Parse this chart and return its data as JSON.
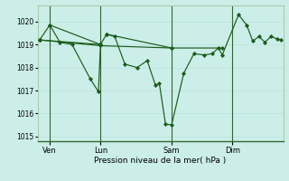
{
  "xlabel": "Pression niveau de la mer( hPa )",
  "bg_color": "#cceee8",
  "line_color": "#1a5c1a",
  "marker_color": "#1a5c1a",
  "ylim": [
    1014.8,
    1020.7
  ],
  "yticks": [
    1015,
    1016,
    1017,
    1018,
    1019,
    1020
  ],
  "day_labels": [
    "Ven",
    "Lun",
    "Sam",
    "Dim"
  ],
  "day_positions": [
    0.5,
    3.0,
    6.5,
    9.5
  ],
  "xlim": [
    -0.1,
    12.0
  ],
  "series": [
    [
      [
        0.0,
        1019.2
      ],
      [
        0.5,
        1019.85
      ],
      [
        1.0,
        1019.1
      ],
      [
        1.6,
        1019.0
      ],
      [
        2.5,
        1017.5
      ],
      [
        2.9,
        1016.95
      ],
      [
        3.0,
        1019.0
      ],
      [
        3.3,
        1019.45
      ],
      [
        3.7,
        1019.35
      ],
      [
        4.2,
        1018.15
      ],
      [
        4.8,
        1018.0
      ],
      [
        5.3,
        1018.3
      ],
      [
        5.7,
        1017.25
      ],
      [
        5.9,
        1017.3
      ],
      [
        6.2,
        1015.55
      ],
      [
        6.5,
        1015.5
      ],
      [
        7.1,
        1017.75
      ],
      [
        7.6,
        1018.6
      ],
      [
        8.1,
        1018.55
      ],
      [
        8.5,
        1018.6
      ],
      [
        8.8,
        1018.85
      ],
      [
        9.0,
        1018.55
      ],
      [
        9.8,
        1020.3
      ],
      [
        10.2,
        1019.85
      ],
      [
        10.5,
        1019.15
      ],
      [
        10.8,
        1019.35
      ],
      [
        11.1,
        1019.1
      ],
      [
        11.4,
        1019.35
      ],
      [
        11.7,
        1019.25
      ],
      [
        11.9,
        1019.2
      ]
    ]
  ],
  "extra_lines": [
    [
      [
        0.0,
        1019.2
      ],
      [
        3.0,
        1019.0
      ]
    ],
    [
      [
        0.0,
        1019.2
      ],
      [
        3.0,
        1018.95
      ],
      [
        6.5,
        1018.85
      ],
      [
        9.0,
        1018.85
      ]
    ],
    [
      [
        0.5,
        1019.85
      ],
      [
        3.0,
        1019.0
      ]
    ],
    [
      [
        3.3,
        1019.45
      ],
      [
        6.5,
        1018.85
      ]
    ]
  ]
}
